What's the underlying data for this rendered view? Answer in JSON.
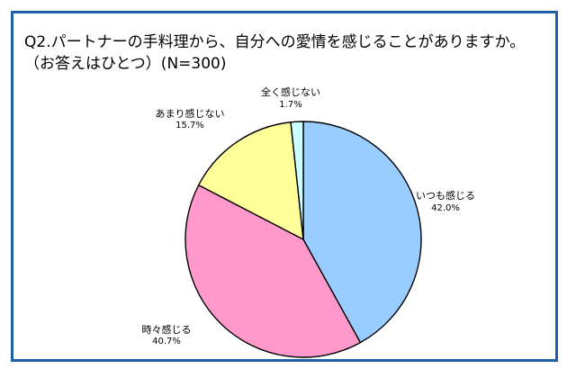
{
  "chart_data": {
    "type": "pie",
    "title": "Q2.パートナーの手料理から、自分への愛情を感じることがありますか。",
    "subtitle": "（お答えはひとつ）(N=300)",
    "slices": [
      {
        "label": "いつも感じる",
        "value": 42.0,
        "display": "42.0%",
        "color": "#99ccff"
      },
      {
        "label": "時々感じる",
        "value": 40.7,
        "display": "40.7%",
        "color": "#ff99cc"
      },
      {
        "label": "あまり感じない",
        "value": 15.7,
        "display": "15.7%",
        "color": "#ffff99"
      },
      {
        "label": "全く感じない",
        "value": 1.7,
        "display": "1.7%",
        "color": "#ccffff"
      }
    ],
    "start_angle": "12 o'clock",
    "direction": "clockwise",
    "legend": "none"
  }
}
